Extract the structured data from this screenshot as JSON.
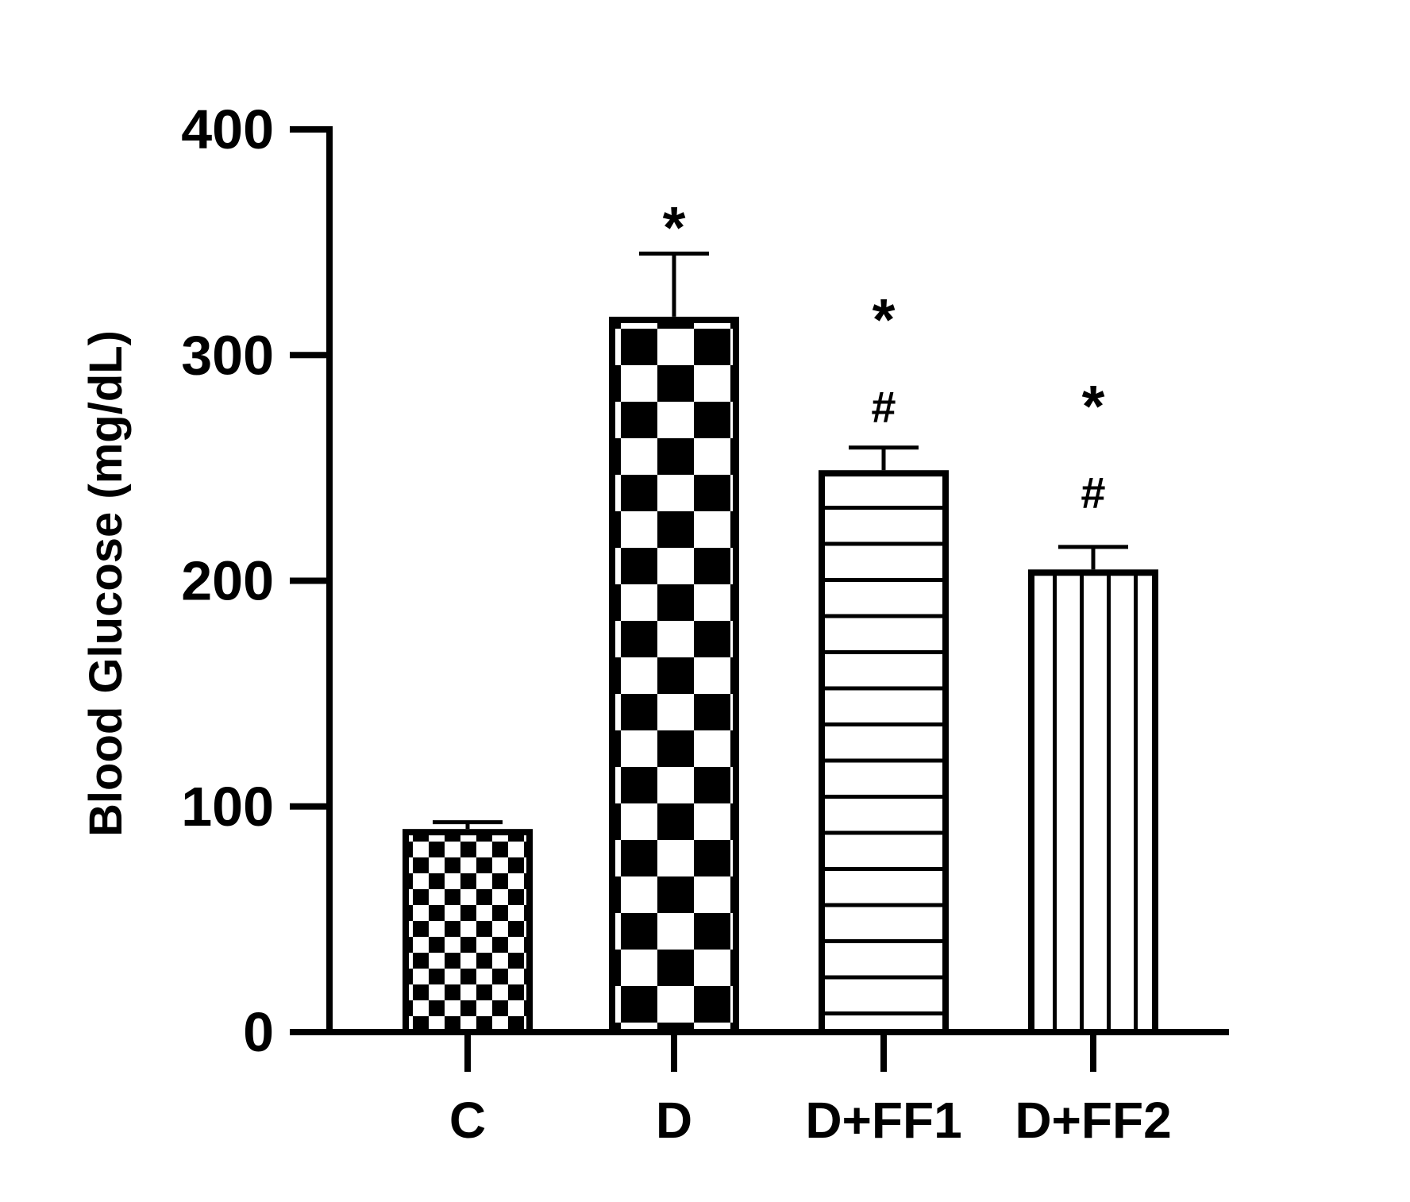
{
  "chart_data": {
    "type": "bar",
    "ylabel": "Blood Glucose (mg/dL)",
    "ylim": [
      0,
      400
    ],
    "yticks": [
      0,
      100,
      200,
      300,
      400
    ],
    "categories": [
      "C",
      "D",
      "D+FF1",
      "D+FF2"
    ],
    "values": [
      90,
      317,
      249,
      205
    ],
    "errors": [
      3,
      28,
      10,
      10
    ],
    "patterns": [
      "checker-small",
      "checker-large",
      "horizontal-stripes",
      "vertical-stripes"
    ],
    "annotations": [
      {
        "category": "D",
        "symbols": [
          "*"
        ]
      },
      {
        "category": "D+FF1",
        "symbols": [
          "*",
          "#"
        ]
      },
      {
        "category": "D+FF2",
        "symbols": [
          "*",
          "#"
        ]
      }
    ],
    "grid": false,
    "legend": "none",
    "colors": {
      "ink": "#000000",
      "background": "#ffffff"
    }
  }
}
